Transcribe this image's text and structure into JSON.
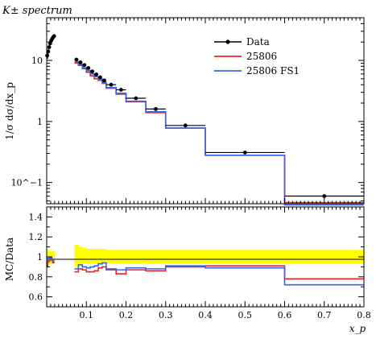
{
  "chart_data": {
    "type": "line",
    "title": "K± spectrum",
    "xlabel": "x_p",
    "xlim": [
      0,
      0.8
    ],
    "xticks": [
      "0.1",
      "0.2",
      "0.3",
      "0.4",
      "0.5",
      "0.6",
      "0.7",
      "0.8"
    ],
    "main": {
      "ylabel": "1/σ dσ/dx_p",
      "yscale": "log",
      "ylim": [
        0.045,
        50
      ],
      "yticks": [
        "10^−1",
        "1",
        "10"
      ],
      "legend": {
        "position": "top-right",
        "entries": [
          {
            "name": "Data",
            "color": "#000000",
            "style": "points"
          },
          {
            "name": "25806",
            "color": "#ee2222",
            "style": "line"
          },
          {
            "name": "25806 FS1",
            "color": "#3366ee",
            "style": "line"
          }
        ]
      }
    },
    "bins": [
      [
        0.0,
        0.0025
      ],
      [
        0.0025,
        0.005
      ],
      [
        0.005,
        0.0075
      ],
      [
        0.0075,
        0.01
      ],
      [
        0.01,
        0.0125
      ],
      [
        0.0125,
        0.015
      ],
      [
        0.015,
        0.0175
      ],
      [
        0.0175,
        0.02
      ],
      [
        0.07,
        0.08
      ],
      [
        0.08,
        0.09
      ],
      [
        0.09,
        0.1
      ],
      [
        0.1,
        0.11
      ],
      [
        0.11,
        0.12
      ],
      [
        0.12,
        0.13
      ],
      [
        0.13,
        0.14
      ],
      [
        0.14,
        0.15
      ],
      [
        0.15,
        0.175
      ],
      [
        0.175,
        0.2
      ],
      [
        0.2,
        0.25
      ],
      [
        0.25,
        0.3
      ],
      [
        0.3,
        0.4
      ],
      [
        0.4,
        0.6
      ],
      [
        0.6,
        0.8
      ]
    ],
    "series": [
      {
        "name": "Data",
        "color": "#000000",
        "values": [
          12.0,
          14.0,
          16.5,
          19.0,
          21.0,
          22.5,
          24.0,
          25.0,
          10.3,
          9.3,
          8.4,
          7.5,
          6.6,
          5.9,
          5.3,
          4.7,
          4.0,
          3.3,
          2.4,
          1.6,
          0.86,
          0.31,
          0.06
        ]
      },
      {
        "name": "25806",
        "color": "#ee2222",
        "values": [
          10.8,
          13.3,
          15.8,
          18.6,
          20.4,
          21.7,
          22.6,
          23.6,
          9.0,
          8.3,
          7.3,
          6.4,
          5.6,
          5.0,
          4.7,
          4.2,
          3.5,
          2.8,
          2.1,
          1.4,
          0.78,
          0.28,
          0.047
        ]
      },
      {
        "name": "25806 FS1",
        "color": "#3366ee",
        "values": [
          11.5,
          13.8,
          16.2,
          18.8,
          20.8,
          22.0,
          23.1,
          24.2,
          9.4,
          8.6,
          7.6,
          6.8,
          6.0,
          5.4,
          4.95,
          4.4,
          3.6,
          2.9,
          2.15,
          1.45,
          0.78,
          0.28,
          0.043
        ]
      }
    ],
    "ratio": {
      "ylabel": "MC/Data",
      "ylim": [
        0.5,
        1.5
      ],
      "yticks": [
        "0.6",
        "0.8",
        "1",
        "1.2",
        "1.4"
      ],
      "band_color": "#ffff00",
      "band_lo": [
        0.9,
        0.92,
        0.93,
        0.93,
        0.94,
        0.94,
        0.94,
        0.94,
        0.9,
        0.92,
        0.93,
        0.93,
        0.93,
        0.93,
        0.93,
        0.93,
        0.93,
        0.93,
        0.93,
        0.93,
        0.93,
        0.93,
        0.93
      ],
      "band_hi": [
        1.08,
        1.07,
        1.06,
        1.06,
        1.06,
        1.06,
        1.06,
        1.06,
        1.12,
        1.1,
        1.09,
        1.08,
        1.08,
        1.08,
        1.08,
        1.08,
        1.07,
        1.07,
        1.07,
        1.07,
        1.07,
        1.07,
        1.07
      ],
      "series": [
        {
          "name": "25806",
          "color": "#ee2222",
          "values": [
            0.9,
            0.95,
            0.96,
            0.98,
            0.97,
            0.965,
            0.94,
            0.945,
            0.85,
            0.88,
            0.87,
            0.85,
            0.85,
            0.86,
            0.89,
            0.9,
            0.87,
            0.83,
            0.87,
            0.86,
            0.9,
            0.91,
            0.78
          ]
        },
        {
          "name": "25806 FS1",
          "color": "#3366ee",
          "values": [
            0.96,
            0.985,
            0.98,
            0.99,
            0.99,
            0.98,
            0.96,
            0.97,
            0.88,
            0.92,
            0.9,
            0.89,
            0.9,
            0.91,
            0.93,
            0.94,
            0.88,
            0.87,
            0.89,
            0.88,
            0.91,
            0.89,
            0.72
          ]
        }
      ]
    }
  }
}
